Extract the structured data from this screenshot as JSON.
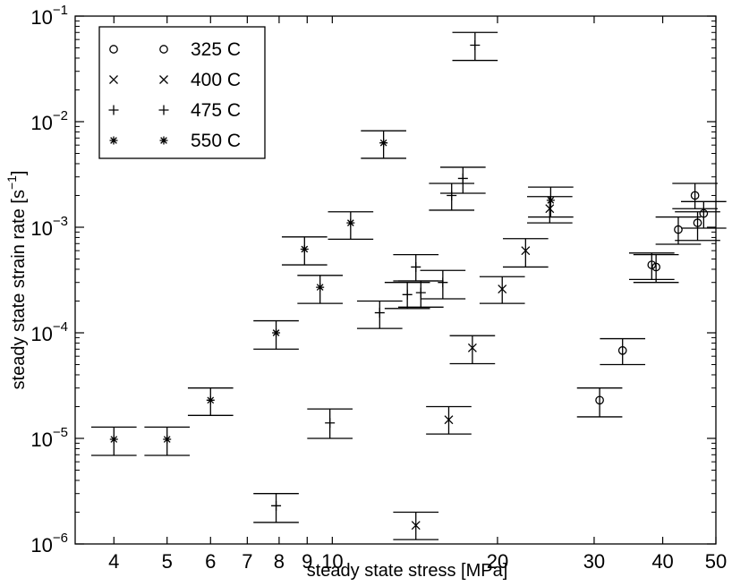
{
  "chart_data": {
    "type": "scatter",
    "title": "",
    "xlabel": "steady state stress [MPa]",
    "ylabel": "steady state strain rate [s",
    "ylabel_exp": "−1",
    "ylabel_end": "]",
    "x_scale": "log",
    "y_scale": "log",
    "xlim": [
      3.4,
      50
    ],
    "ylim": [
      1e-06,
      0.1
    ],
    "grid": false,
    "legend_position": "top-left",
    "x_ticks": [
      {
        "v": 4,
        "label": "4"
      },
      {
        "v": 5,
        "label": "5"
      },
      {
        "v": 6,
        "label": "6"
      },
      {
        "v": 7,
        "label": "7"
      },
      {
        "v": 8,
        "label": "8"
      },
      {
        "v": 9,
        "label": "9"
      },
      {
        "v": 10,
        "label": "10"
      },
      {
        "v": 20,
        "label": "20"
      },
      {
        "v": 30,
        "label": "30"
      },
      {
        "v": 40,
        "label": "40"
      },
      {
        "v": 50,
        "label": "50"
      }
    ],
    "y_ticks": [
      {
        "v": 1e-06,
        "base": "10",
        "exp": "−6"
      },
      {
        "v": 1e-05,
        "base": "10",
        "exp": "−5"
      },
      {
        "v": 0.0001,
        "base": "10",
        "exp": "−4"
      },
      {
        "v": 0.001,
        "base": "10",
        "exp": "−3"
      },
      {
        "v": 0.01,
        "base": "10",
        "exp": "−2"
      },
      {
        "v": 0.1,
        "base": "10",
        "exp": "−1"
      }
    ],
    "series": [
      {
        "name": "325 C",
        "marker": "circle",
        "points": [
          {
            "x": 30.7,
            "y": 2.3e-05,
            "lo": 1.6e-05,
            "hi": 3e-05
          },
          {
            "x": 33.8,
            "y": 6.8e-05,
            "lo": 5e-05,
            "hi": 8.8e-05
          },
          {
            "x": 38.2,
            "y": 0.00044,
            "lo": 0.00032,
            "hi": 0.00057
          },
          {
            "x": 38.9,
            "y": 0.00042,
            "lo": 0.0003,
            "hi": 0.00055
          },
          {
            "x": 42.7,
            "y": 0.00095,
            "lo": 0.00069,
            "hi": 0.00125
          },
          {
            "x": 45.8,
            "y": 0.002,
            "lo": 0.0015,
            "hi": 0.0026
          },
          {
            "x": 46.3,
            "y": 0.0011,
            "lo": 0.00075,
            "hi": 0.0014
          },
          {
            "x": 47.5,
            "y": 0.00135,
            "lo": 0.00098,
            "hi": 0.00175
          }
        ]
      },
      {
        "name": "400 C",
        "marker": "x",
        "points": [
          {
            "x": 14.2,
            "y": 1.5e-06,
            "lo": 1.1e-06,
            "hi": 2e-06
          },
          {
            "x": 16.3,
            "y": 1.5e-05,
            "lo": 1.1e-05,
            "hi": 2e-05
          },
          {
            "x": 18.0,
            "y": 7.2e-05,
            "lo": 5.1e-05,
            "hi": 9.4e-05
          },
          {
            "x": 20.4,
            "y": 0.00026,
            "lo": 0.00019,
            "hi": 0.00034
          },
          {
            "x": 22.5,
            "y": 0.0006,
            "lo": 0.00042,
            "hi": 0.00078
          },
          {
            "x": 24.9,
            "y": 0.0015,
            "lo": 0.0011,
            "hi": 0.00195
          }
        ]
      },
      {
        "name": "475 C",
        "marker": "plus",
        "points": [
          {
            "x": 7.9,
            "y": 2.3e-06,
            "lo": 1.6e-06,
            "hi": 3e-06
          },
          {
            "x": 9.9,
            "y": 1.4e-05,
            "lo": 1e-05,
            "hi": 1.9e-05
          },
          {
            "x": 12.2,
            "y": 0.000155,
            "lo": 0.00011,
            "hi": 0.0002
          },
          {
            "x": 13.7,
            "y": 0.00023,
            "lo": 0.00017,
            "hi": 0.0003
          },
          {
            "x": 14.2,
            "y": 0.00042,
            "lo": 0.00031,
            "hi": 0.00055
          },
          {
            "x": 14.5,
            "y": 0.00024,
            "lo": 0.000175,
            "hi": 0.00031
          },
          {
            "x": 15.9,
            "y": 0.0003,
            "lo": 0.00021,
            "hi": 0.00039
          },
          {
            "x": 16.5,
            "y": 0.002,
            "lo": 0.00145,
            "hi": 0.0026
          },
          {
            "x": 17.3,
            "y": 0.0029,
            "lo": 0.0021,
            "hi": 0.0037
          },
          {
            "x": 18.2,
            "y": 0.053,
            "lo": 0.038,
            "hi": 0.07
          }
        ]
      },
      {
        "name": "550 C",
        "marker": "asterisk",
        "points": [
          {
            "x": 4.0,
            "y": 9.8e-06,
            "lo": 6.9e-06,
            "hi": 1.28e-05
          },
          {
            "x": 5.0,
            "y": 9.8e-06,
            "lo": 6.9e-06,
            "hi": 1.28e-05
          },
          {
            "x": 6.0,
            "y": 2.3e-05,
            "lo": 1.65e-05,
            "hi": 3e-05
          },
          {
            "x": 7.9,
            "y": 0.0001,
            "lo": 7e-05,
            "hi": 0.00013
          },
          {
            "x": 8.9,
            "y": 0.00062,
            "lo": 0.00044,
            "hi": 0.00081
          },
          {
            "x": 9.5,
            "y": 0.00027,
            "lo": 0.00019,
            "hi": 0.00035
          },
          {
            "x": 10.8,
            "y": 0.0011,
            "lo": 0.00077,
            "hi": 0.0014
          },
          {
            "x": 12.4,
            "y": 0.0063,
            "lo": 0.0045,
            "hi": 0.0082
          },
          {
            "x": 25.0,
            "y": 0.0018,
            "lo": 0.00125,
            "hi": 0.0024
          }
        ]
      }
    ]
  }
}
